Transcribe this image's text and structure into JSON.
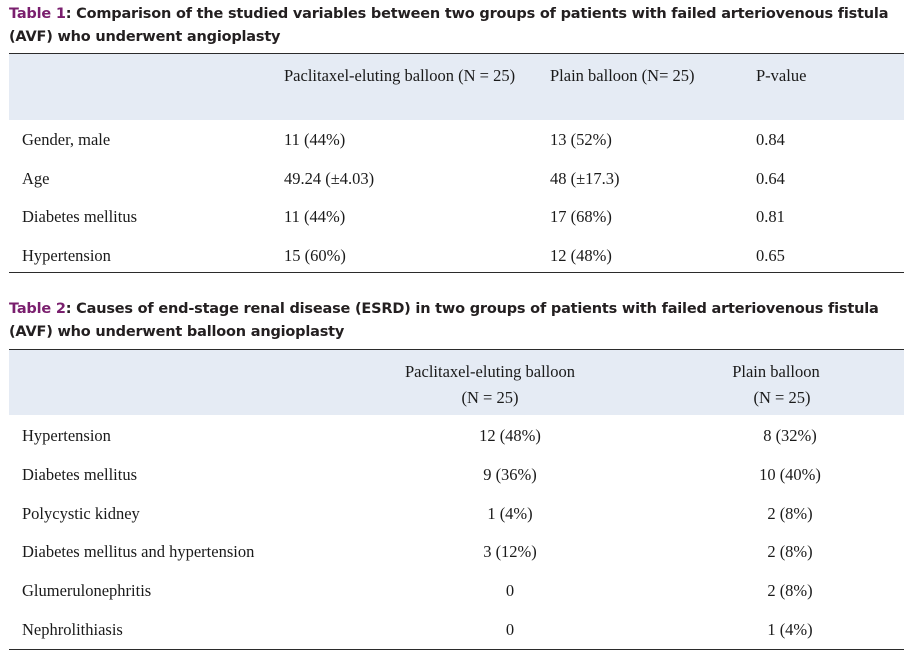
{
  "table1": {
    "label": "Table 1",
    "caption": ": Comparison of the studied variables between two groups of patients with failed arteriovenous fistula (AVF) who underwent angioplasty",
    "headers": [
      "",
      "Paclitaxel-eluting balloon (N = 25)",
      "Plain balloon (N= 25)",
      "P-value"
    ],
    "rows": [
      [
        "Gender, male",
        "11 (44%)",
        "13 (52%)",
        "0.84"
      ],
      [
        "Age",
        "49.24 (±4.03)",
        "48 (±17.3)",
        "0.64"
      ],
      [
        "Diabetes mellitus",
        "11 (44%)",
        "17 (68%)",
        "0.81"
      ],
      [
        "Hypertension",
        "15 (60%)",
        "12 (48%)",
        "0.65"
      ]
    ]
  },
  "table2": {
    "label": "Table 2",
    "caption": ": Causes of end-stage renal disease (ESRD) in two groups of patients with failed arteriovenous fistula (AVF) who underwent balloon angioplasty",
    "headers": [
      "",
      "Paclitaxel-eluting balloon",
      "(N = 25)",
      "Plain balloon",
      "(N = 25)"
    ],
    "rows": [
      [
        "Hypertension",
        "12 (48%)",
        "8 (32%)"
      ],
      [
        "Diabetes mellitus",
        "9 (36%)",
        "10 (40%)"
      ],
      [
        "Polycystic kidney",
        "1 (4%)",
        "2 (8%)"
      ],
      [
        "Diabetes mellitus and hypertension",
        "3 (12%)",
        "2 (8%)"
      ],
      [
        "Glumerulonephritis",
        "0",
        "2 (8%)"
      ],
      [
        "Nephrolithiasis",
        "0",
        "1 (4%)"
      ]
    ]
  },
  "colors": {
    "header_band": "#e5ebf4",
    "table_label": "#7a1f6e"
  }
}
